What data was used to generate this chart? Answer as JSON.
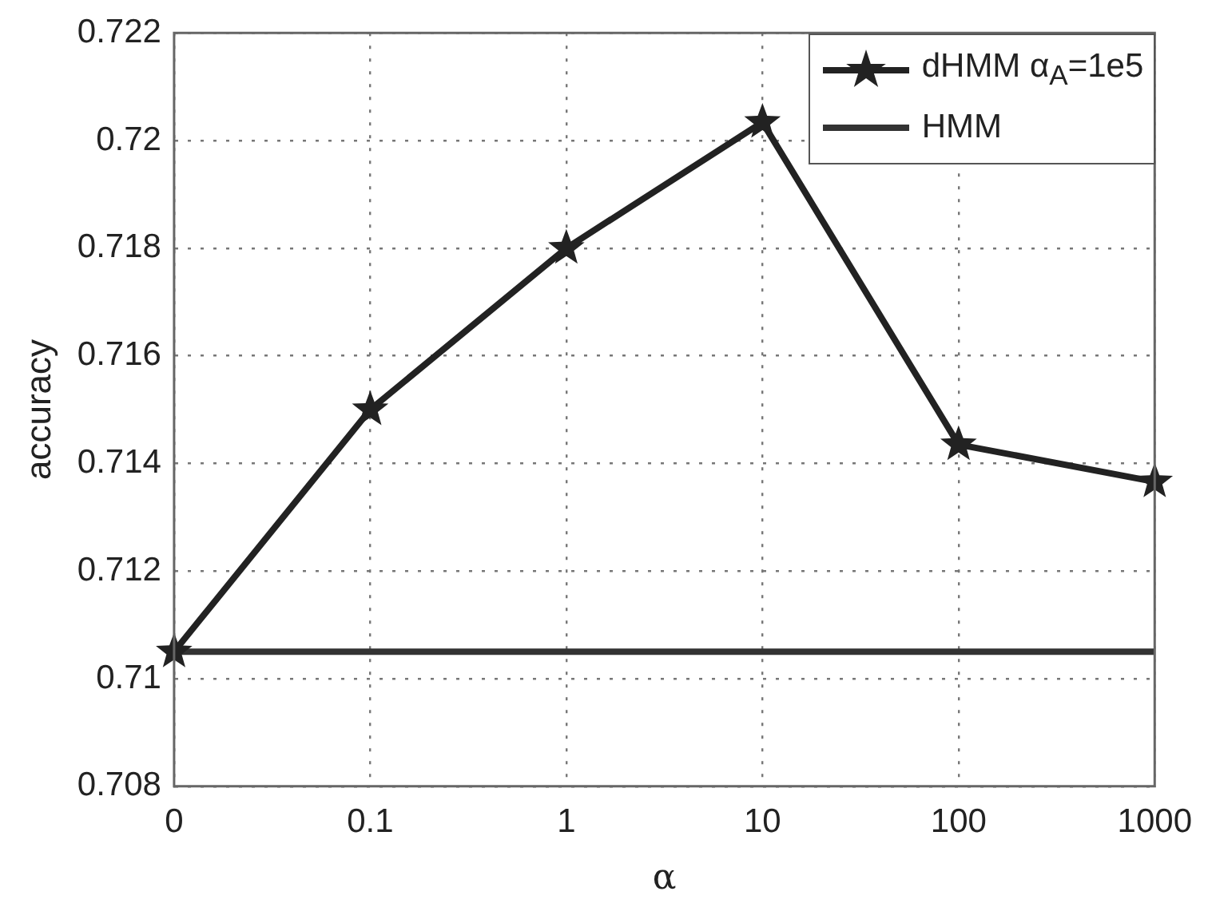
{
  "chart_data": {
    "type": "line",
    "xlabel": "α",
    "ylabel": "accuracy",
    "categories": [
      "0",
      "0.1",
      "1",
      "10",
      "100",
      "1000"
    ],
    "series": [
      {
        "name": "dHMM α$_{A}$=1e5",
        "color": "#222222",
        "marker": "star",
        "values": [
          0.7105,
          0.715,
          0.718,
          0.72034,
          0.71435,
          0.71366
        ]
      },
      {
        "name": "HMM",
        "color": "#333333",
        "marker": "none",
        "values": [
          0.7105,
          0.7105,
          0.7105,
          0.7105,
          0.7105,
          0.7105
        ]
      }
    ],
    "ylim": [
      0.708,
      0.722
    ],
    "yticks": [
      0.708,
      0.71,
      0.712,
      0.714,
      0.716,
      0.718,
      0.72,
      0.722
    ],
    "grid": true,
    "legend": "top right",
    "line_style": "solid"
  }
}
